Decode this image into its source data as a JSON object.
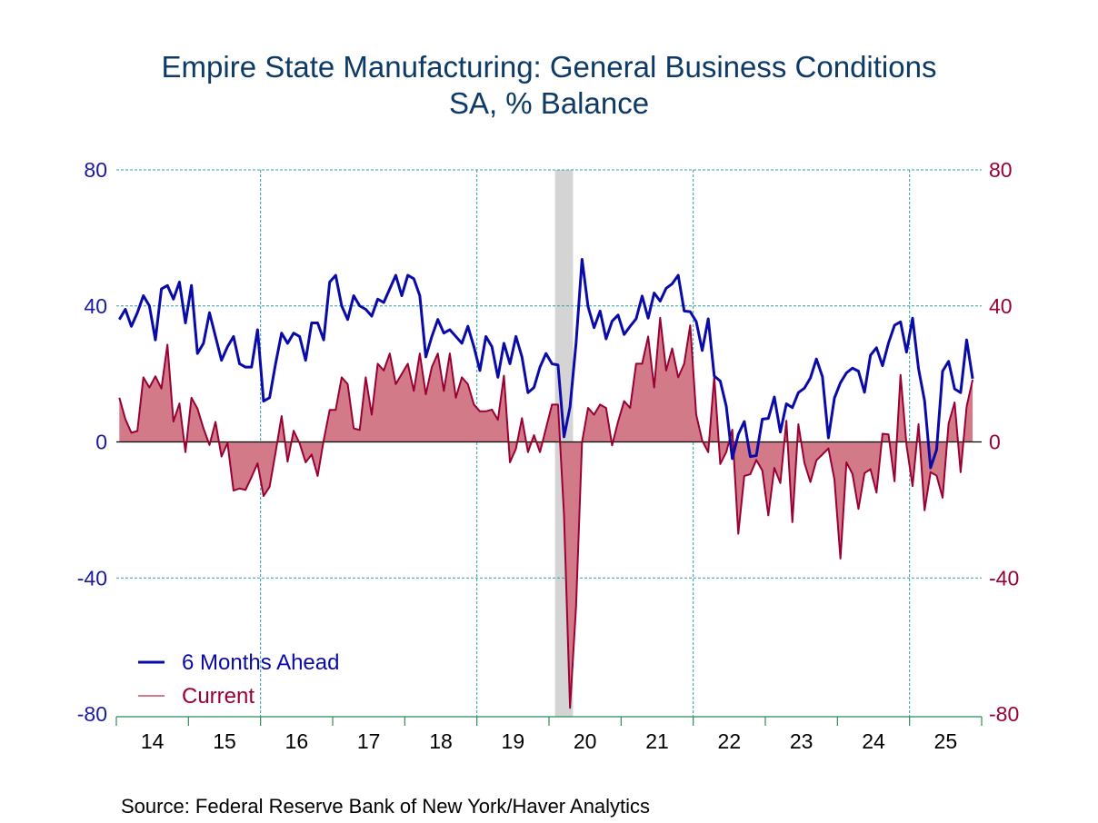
{
  "chart_data": {
    "type": "line",
    "title": "Empire State Manufacturing: General Business Conditions",
    "subtitle": "SA, % Balance",
    "source": "Source:  Federal Reserve Bank of New York/Haver Analytics",
    "xlabel": "",
    "ylabel": "",
    "ylim": [
      -80,
      80
    ],
    "yticks": [
      80,
      40,
      0,
      -40,
      -80
    ],
    "y_right_ticks": [
      80,
      40,
      0,
      -40,
      -80
    ],
    "xlim": [
      "2014-01",
      "2025-12"
    ],
    "xtick_labels": [
      "14",
      "15",
      "16",
      "17",
      "18",
      "19",
      "20",
      "21",
      "22",
      "23",
      "24",
      "25"
    ],
    "grid": "dashed, every 40 on y and every 3 years on x",
    "legend_placement": "bottom-left",
    "recession_shading": [
      "2020-02",
      "2020-04"
    ],
    "colors": {
      "six_months": "#0a0aa8",
      "current": "#990033",
      "current_fill": "#d37a88",
      "shading": "#d4d4d4",
      "grid": "#2aa0a8",
      "title": "#0d3a66",
      "axis": "#2e8b57"
    },
    "x": [
      "2014-01",
      "2014-02",
      "2014-03",
      "2014-04",
      "2014-05",
      "2014-06",
      "2014-07",
      "2014-08",
      "2014-09",
      "2014-10",
      "2014-11",
      "2014-12",
      "2015-01",
      "2015-02",
      "2015-03",
      "2015-04",
      "2015-05",
      "2015-06",
      "2015-07",
      "2015-08",
      "2015-09",
      "2015-10",
      "2015-11",
      "2015-12",
      "2016-01",
      "2016-02",
      "2016-03",
      "2016-04",
      "2016-05",
      "2016-06",
      "2016-07",
      "2016-08",
      "2016-09",
      "2016-10",
      "2016-11",
      "2016-12",
      "2017-01",
      "2017-02",
      "2017-03",
      "2017-04",
      "2017-05",
      "2017-06",
      "2017-07",
      "2017-08",
      "2017-09",
      "2017-10",
      "2017-11",
      "2017-12",
      "2018-01",
      "2018-02",
      "2018-03",
      "2018-04",
      "2018-05",
      "2018-06",
      "2018-07",
      "2018-08",
      "2018-09",
      "2018-10",
      "2018-11",
      "2018-12",
      "2019-01",
      "2019-02",
      "2019-03",
      "2019-04",
      "2019-05",
      "2019-06",
      "2019-07",
      "2019-08",
      "2019-09",
      "2019-10",
      "2019-11",
      "2019-12",
      "2020-01",
      "2020-02",
      "2020-03",
      "2020-04",
      "2020-05",
      "2020-06",
      "2020-07",
      "2020-08",
      "2020-09",
      "2020-10",
      "2020-11",
      "2020-12",
      "2021-01",
      "2021-02",
      "2021-03",
      "2021-04",
      "2021-05",
      "2021-06",
      "2021-07",
      "2021-08",
      "2021-09",
      "2021-10",
      "2021-11",
      "2021-12",
      "2022-01",
      "2022-02",
      "2022-03",
      "2022-04",
      "2022-05",
      "2022-06",
      "2022-07",
      "2022-08",
      "2022-09",
      "2022-10",
      "2022-11",
      "2022-12",
      "2023-01",
      "2023-02",
      "2023-03",
      "2023-04",
      "2023-05",
      "2023-06",
      "2023-07",
      "2023-08",
      "2023-09",
      "2023-10",
      "2023-11",
      "2023-12",
      "2024-01",
      "2024-02",
      "2024-03",
      "2024-04",
      "2024-05",
      "2024-06",
      "2024-07",
      "2024-08",
      "2024-09",
      "2024-10",
      "2024-11",
      "2024-12",
      "2025-01",
      "2025-02",
      "2025-03",
      "2025-04",
      "2025-05",
      "2025-06",
      "2025-07",
      "2025-08",
      "2025-09",
      "2025-10",
      "2025-11"
    ],
    "series": [
      {
        "name": "6 Months Ahead",
        "axis": "left",
        "style": "line",
        "values": [
          36,
          39,
          34,
          38,
          43,
          40,
          30,
          45,
          46,
          42,
          47,
          35,
          46,
          26,
          29,
          38,
          31,
          24,
          28,
          31,
          23,
          22,
          22,
          33,
          12,
          13,
          23,
          32,
          29,
          32,
          31,
          24,
          35,
          35,
          30,
          47,
          49,
          40,
          36,
          43,
          40,
          39,
          37,
          42,
          41,
          45,
          49,
          43,
          49,
          48,
          43,
          25,
          31,
          36,
          32,
          33,
          31,
          29,
          34,
          28,
          21,
          31,
          28,
          19,
          29,
          23,
          31,
          25,
          14.5,
          16,
          22,
          26,
          23,
          22.6,
          1.5,
          10.3,
          29,
          53.7,
          39.8,
          33.6,
          38.5,
          30.3,
          35.5,
          37.3,
          31.6,
          34,
          36.2,
          42.9,
          36.4,
          43.8,
          41.4,
          45.2,
          46.5,
          49,
          38.5,
          38.3,
          35.4,
          26.9,
          36.2,
          19.4,
          17.9,
          10.5,
          -4.9,
          2.2,
          6,
          -4.3,
          -4,
          6.7,
          6.9,
          13.2,
          2.9,
          11.2,
          10.1,
          14.5,
          15.8,
          18.8,
          24.4,
          19.2,
          1.2,
          12.9,
          17.4,
          20.3,
          21.7,
          20.8,
          14.6,
          25.5,
          27.7,
          22.4,
          29.1,
          34.3,
          35.3,
          26.4,
          36.4,
          21.5,
          12.1,
          -7.6,
          -2.3,
          20.8,
          23.7,
          15.6,
          14.5,
          30,
          18.6
        ]
      },
      {
        "name": "Current",
        "axis": "right",
        "style": "area",
        "values": [
          13,
          6.7,
          2.7,
          3.2,
          19,
          16,
          19.3,
          15.7,
          28.6,
          6,
          11.3,
          -3,
          13,
          9.8,
          4,
          -0.9,
          5.9,
          -4.3,
          -0.3,
          -14.3,
          -13.7,
          -14.1,
          -10.3,
          -6.3,
          -15.9,
          -13.2,
          -3.1,
          7.6,
          -5.8,
          3.3,
          -0.4,
          -6,
          -3.7,
          -10,
          0.4,
          9.4,
          9.4,
          19,
          17,
          4,
          3.5,
          19,
          8,
          23,
          21,
          26,
          17,
          20,
          23,
          15,
          26,
          14,
          22,
          26,
          15,
          26,
          13,
          19,
          17,
          11,
          9,
          9,
          9.5,
          6.5,
          19.5,
          -6,
          -2,
          7,
          -3,
          2,
          -3,
          4,
          11,
          11,
          -21.5,
          -78.2,
          -48.5,
          0,
          10,
          8,
          11,
          10,
          -1,
          6,
          12,
          10,
          23,
          23,
          31,
          16,
          36.5,
          21,
          27.5,
          19,
          23,
          34.3,
          8,
          0.4,
          -3,
          19.2,
          -6.5,
          -3,
          3.6,
          -27,
          -10,
          -9.5,
          -5.3,
          -8.4,
          -21.6,
          -7.6,
          -12.1,
          6.2,
          -23.6,
          5.2,
          -6.1,
          -11.8,
          -5.4,
          -3.7,
          -1.9,
          -11,
          -34.3,
          -6,
          -9.4,
          -19.7,
          -9.2,
          -8,
          -14.9,
          2.4,
          2.2,
          -11.6,
          19.7,
          -1,
          -13,
          5.2,
          -20.1,
          -8.9,
          -9.9,
          -16.4,
          5.4,
          11.6,
          -8.9,
          10.4,
          18.3
        ]
      }
    ]
  }
}
